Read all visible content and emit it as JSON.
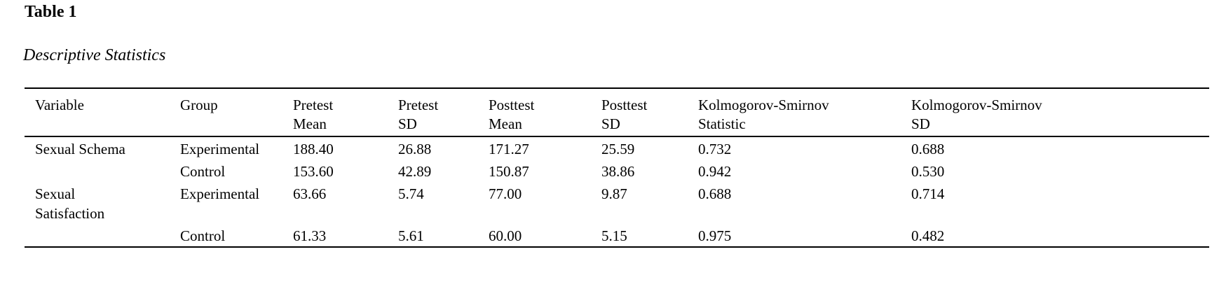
{
  "table_number": "Table 1",
  "table_title": "Descriptive Statistics",
  "columns": [
    [
      "Variable",
      ""
    ],
    [
      "Group",
      ""
    ],
    [
      "Pretest",
      "Mean"
    ],
    [
      "Pretest",
      "SD"
    ],
    [
      "Posttest",
      "Mean"
    ],
    [
      "Posttest",
      "SD"
    ],
    [
      "Kolmogorov-Smirnov",
      "Statistic"
    ],
    [
      "Kolmogorov-Smirnov",
      "SD"
    ]
  ],
  "rows": [
    {
      "variable": [
        "Sexual Schema",
        ""
      ],
      "cells": [
        "Experimental",
        "188.40",
        "26.88",
        "171.27",
        "25.59",
        "0.732",
        "0.688"
      ]
    },
    {
      "variable": [
        "",
        ""
      ],
      "cells": [
        "Control",
        "153.60",
        "42.89",
        "150.87",
        "38.86",
        "0.942",
        "0.530"
      ]
    },
    {
      "variable": [
        "Sexual",
        "Satisfaction"
      ],
      "cells": [
        "Experimental",
        "63.66",
        "5.74",
        "77.00",
        "9.87",
        "0.688",
        "0.714"
      ]
    },
    {
      "variable": [
        "",
        ""
      ],
      "cells": [
        "Control",
        "61.33",
        "5.61",
        "60.00",
        "5.15",
        "0.975",
        "0.482"
      ]
    }
  ]
}
